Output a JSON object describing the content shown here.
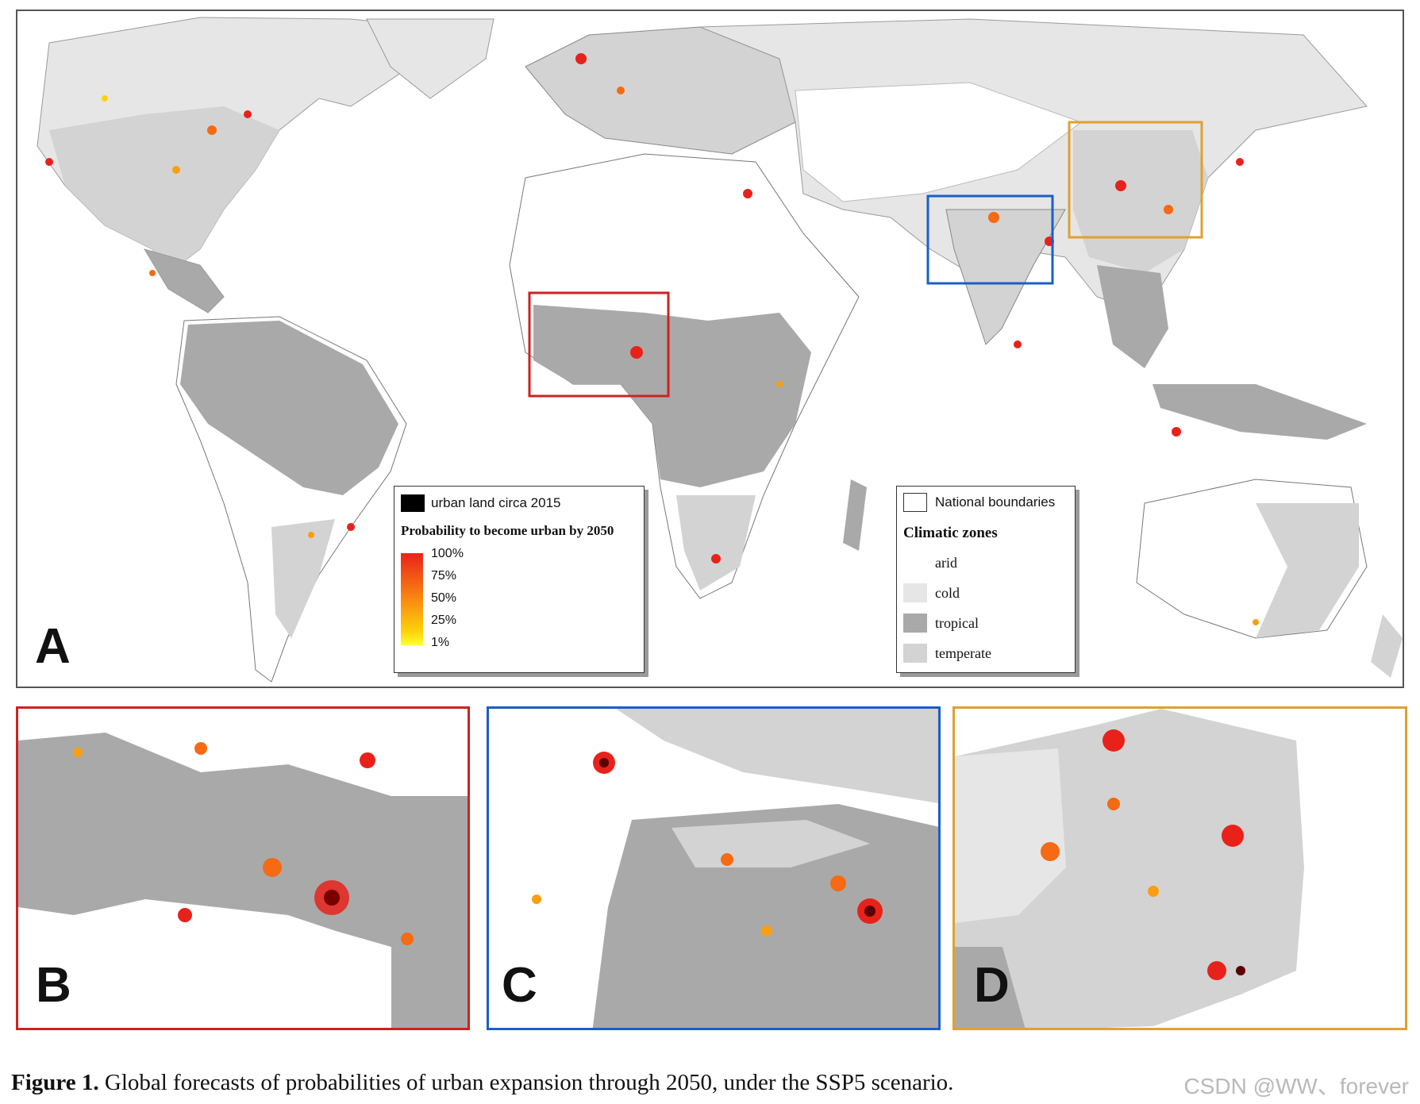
{
  "colors": {
    "arid": "#ffffff",
    "cold": "#e6e6e6",
    "tropical": "#a9a9a9",
    "temperate": "#d3d3d3",
    "urban": "#000000",
    "prob_high": "#e8221b",
    "prob_low": "#ffff33",
    "frame_b": "#cc2222",
    "frame_c": "#1a5fc8",
    "frame_d": "#e0a030"
  },
  "panels": {
    "a": {
      "letter": "A"
    },
    "b": {
      "letter": "B"
    },
    "c": {
      "letter": "C"
    },
    "d": {
      "letter": "D"
    }
  },
  "legend_urban": {
    "swatch_label": "urban land circa 2015",
    "title": "Probability to become urban by 2050",
    "ticks": [
      "100%",
      "75%",
      "50%",
      "25%",
      "1%"
    ]
  },
  "legend_climate": {
    "boundaries_label": "National boundaries",
    "title": "Climatic zones",
    "zones": [
      {
        "label": "arid",
        "icon": "arid-swatch"
      },
      {
        "label": "cold",
        "icon": "cold-swatch"
      },
      {
        "label": "tropical",
        "icon": "tropical-swatch"
      },
      {
        "label": "temperate",
        "icon": "temperate-swatch"
      }
    ]
  },
  "caption": {
    "label": "Figure 1.",
    "text": " Global forecasts of probabilities of urban expansion through 2050, under the SSP5 scenario."
  },
  "watermark": "CSDN @WW、forever"
}
